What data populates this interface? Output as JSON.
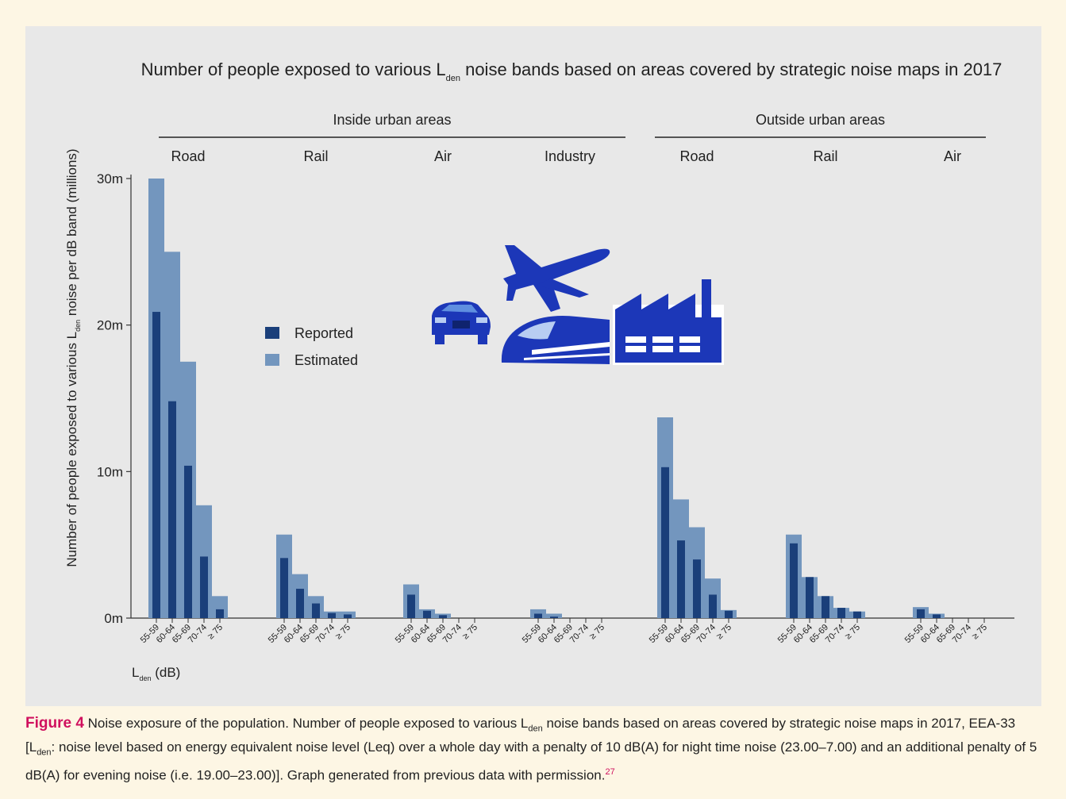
{
  "colors": {
    "background": "#fdf6e4",
    "plot_background": "#e8e8e8",
    "reported": "#1a3f7a",
    "estimated": "#7396be",
    "icon": "#1c37b8",
    "figure_label": "#d0105e"
  },
  "icons": [
    "car-icon",
    "airplane-icon",
    "train-icon",
    "factory-icon"
  ],
  "chart_data": {
    "type": "bar",
    "title": "Number of people exposed to various L",
    "title_sub": "den",
    "title_rest": " noise bands based on areas covered by strategic noise maps in 2017",
    "ylabel": "Number of people exposed to various L",
    "ylabel_sub": "den",
    "ylabel_rest": " noise per dB band (millions)",
    "xlabel": "L",
    "xlabel_sub": "den",
    "xlabel_rest": " (dB)",
    "ylim": [
      0,
      30
    ],
    "yticks": [
      0,
      10,
      20,
      30
    ],
    "ytick_labels": [
      "0m",
      "10m",
      "20m",
      "30m"
    ],
    "legend": {
      "placement": "upper-left",
      "items": [
        "Reported",
        "Estimated"
      ]
    },
    "band_labels": [
      "55-59",
      "60-64",
      "65-69",
      "70-74",
      "≥ 75"
    ],
    "groups": [
      {
        "area": "Inside urban areas",
        "source": "Road",
        "estimated": [
          30.0,
          25.0,
          17.5,
          7.7,
          1.5
        ],
        "reported": [
          20.9,
          14.8,
          10.4,
          4.2,
          0.6
        ]
      },
      {
        "area": "Inside urban areas",
        "source": "Rail",
        "estimated": [
          5.7,
          3.0,
          1.5,
          0.45,
          0.45
        ],
        "reported": [
          4.1,
          2.0,
          1.0,
          0.35,
          0.25
        ]
      },
      {
        "area": "Inside urban areas",
        "source": "Air",
        "estimated": [
          2.3,
          0.6,
          0.3,
          0,
          0
        ],
        "reported": [
          1.6,
          0.5,
          0.2,
          0,
          0
        ]
      },
      {
        "area": "Inside urban areas",
        "source": "Industry",
        "estimated": [
          0.6,
          0.3,
          0,
          0,
          0
        ],
        "reported": [
          0.3,
          0.1,
          0,
          0,
          0
        ]
      },
      {
        "area": "Outside urban areas",
        "source": "Road",
        "estimated": [
          13.7,
          8.1,
          6.2,
          2.7,
          0.55
        ],
        "reported": [
          10.3,
          5.3,
          4.0,
          1.6,
          0.5
        ]
      },
      {
        "area": "Outside urban areas",
        "source": "Rail",
        "estimated": [
          5.7,
          2.8,
          1.5,
          0.7,
          0.45
        ],
        "reported": [
          5.1,
          2.8,
          1.5,
          0.7,
          0.45
        ]
      },
      {
        "area": "Outside urban areas",
        "source": "Air",
        "estimated": [
          0.75,
          0.3,
          0,
          0,
          0
        ],
        "reported": [
          0.6,
          0.25,
          0,
          0,
          0
        ]
      }
    ],
    "area_headers": [
      "Inside urban areas",
      "Outside urban areas"
    ],
    "series": [
      {
        "name": "Reported"
      },
      {
        "name": "Estimated"
      }
    ]
  },
  "caption": {
    "label": "Figure 4",
    "text_1": " Noise exposure of the population. Number of people exposed to various L",
    "sub_1": "den",
    "text_2": " noise bands based on areas covered by strategic noise maps in 2017, EEA-33 [L",
    "sub_2": "den",
    "text_3": ": noise level based on energy equivalent noise level (Leq) over a whole day with a penalty of 10 dB(A) for night time noise (23.00–7.00) and an additional penalty of 5 dB(A) for evening noise (i.e. 19.00–23.00)]. Graph generated from previous data with permission.",
    "ref": "27"
  }
}
